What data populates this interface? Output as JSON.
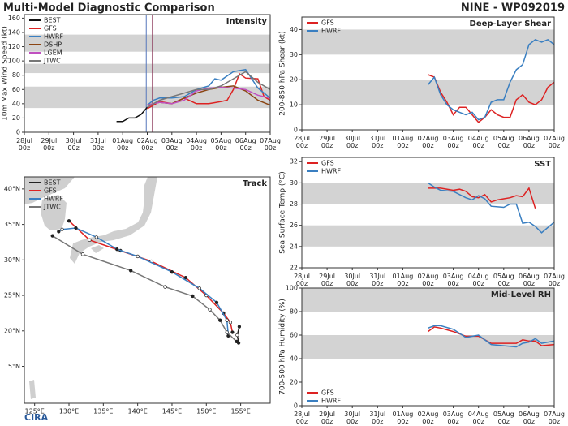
{
  "title": "Multi-Model Diagnostic Comparison",
  "storm": "NINE - WP092019",
  "logo": "CIRA",
  "chart_data": [
    {
      "type": "line",
      "title": "Intensity",
      "ylabel": "10m Max Wind Speed (kt)",
      "legend": "upper left",
      "xlim": [
        0,
        240
      ],
      "xticks": [
        {
          "value": 0,
          "label": "28Jul 00z"
        },
        {
          "value": 24,
          "label": "29Jul 00z"
        },
        {
          "value": 48,
          "label": "30Jul 00z"
        },
        {
          "value": 72,
          "label": "31Jul 00z"
        },
        {
          "value": 96,
          "label": "01Aug 00z"
        },
        {
          "value": 120,
          "label": "02Aug 00z"
        },
        {
          "value": 144,
          "label": "03Aug 00z"
        },
        {
          "value": 168,
          "label": "04Aug 00z"
        },
        {
          "value": 192,
          "label": "05Aug 00z"
        },
        {
          "value": 216,
          "label": "06Aug 00z"
        },
        {
          "value": 240,
          "label": "07Aug 00z"
        }
      ],
      "ylim": [
        0,
        165
      ],
      "yticks": [
        0,
        20,
        40,
        60,
        80,
        100,
        120,
        140,
        160
      ],
      "bands": [
        [
          34,
          64
        ],
        [
          83,
          96
        ],
        [
          113,
          137
        ]
      ],
      "markers": [
        {
          "x": 119,
          "color": "#5577bb"
        },
        {
          "x": 125,
          "color": "#883355"
        }
      ],
      "series": [
        {
          "name": "BEST",
          "color": "#111111",
          "x": [
            90,
            96,
            102,
            108,
            114,
            120
          ],
          "values": [
            15,
            15,
            20,
            20,
            25,
            35
          ]
        },
        {
          "name": "GFS",
          "color": "#dd2222",
          "x": [
            120,
            132,
            144,
            156,
            168,
            180,
            192,
            198,
            204,
            210,
            216,
            228,
            234,
            240
          ],
          "values": [
            33,
            43,
            40,
            48,
            40,
            40,
            43,
            45,
            60,
            82,
            76,
            75,
            50,
            45
          ]
        },
        {
          "name": "HWRF",
          "color": "#3a7fc1",
          "x": [
            120,
            126,
            132,
            144,
            156,
            168,
            180,
            186,
            192,
            204,
            216,
            228,
            240
          ],
          "values": [
            38,
            45,
            48,
            48,
            50,
            60,
            65,
            75,
            73,
            85,
            88,
            62,
            48
          ]
        },
        {
          "name": "DSHP",
          "color": "#8b4513",
          "x": [
            120,
            132,
            144,
            156,
            168,
            180,
            192,
            204,
            216,
            228,
            240
          ],
          "values": [
            38,
            42,
            40,
            48,
            55,
            60,
            63,
            65,
            58,
            45,
            38
          ]
        },
        {
          "name": "LGEM",
          "color": "#c050c0",
          "x": [
            120,
            132,
            144,
            156,
            168,
            180,
            192,
            204,
            216,
            228,
            240
          ],
          "values": [
            38,
            42,
            40,
            45,
            58,
            62,
            63,
            62,
            60,
            52,
            48
          ]
        },
        {
          "name": "JTWC",
          "color": "#777777",
          "x": [
            120,
            132,
            144,
            156,
            168,
            180,
            192,
            204,
            216,
            228,
            240
          ],
          "values": [
            35,
            45,
            50,
            55,
            60,
            60,
            65,
            75,
            85,
            70,
            60
          ]
        }
      ]
    },
    {
      "type": "line",
      "title": "Deep-Layer Shear",
      "ylabel": "200-850 hPa Shear (kt)",
      "legend": "upper left",
      "xlim": [
        0,
        240
      ],
      "xticks": [
        {
          "value": 0,
          "label": "28Jul 00z"
        },
        {
          "value": 24,
          "label": "29Jul 00z"
        },
        {
          "value": 48,
          "label": "30Jul 00z"
        },
        {
          "value": 72,
          "label": "31Jul 00z"
        },
        {
          "value": 96,
          "label": "01Aug 00z"
        },
        {
          "value": 120,
          "label": "02Aug 00z"
        },
        {
          "value": 144,
          "label": "03Aug 00z"
        },
        {
          "value": 168,
          "label": "04Aug 00z"
        },
        {
          "value": 192,
          "label": "05Aug 00z"
        },
        {
          "value": 216,
          "label": "06Aug 00z"
        },
        {
          "value": 240,
          "label": "07Aug 00z"
        }
      ],
      "ylim": [
        0,
        45
      ],
      "yticks": [
        0,
        10,
        20,
        30,
        40
      ],
      "bands": [
        [
          10,
          20
        ],
        [
          30,
          40
        ]
      ],
      "markers": [
        {
          "x": 120,
          "color": "#5577bb"
        }
      ],
      "series": [
        {
          "name": "GFS",
          "color": "#dd2222",
          "x": [
            120,
            126,
            132,
            138,
            144,
            150,
            156,
            162,
            168,
            174,
            180,
            186,
            192,
            198,
            204,
            210,
            216,
            222,
            228,
            234,
            240
          ],
          "values": [
            22,
            21,
            15,
            11,
            6,
            9,
            9,
            6,
            3,
            5,
            8,
            6,
            5,
            5,
            12,
            14,
            11,
            10,
            12,
            17,
            19
          ]
        },
        {
          "name": "HWRF",
          "color": "#3a7fc1",
          "x": [
            120,
            126,
            132,
            138,
            144,
            150,
            156,
            162,
            168,
            174,
            180,
            186,
            192,
            198,
            204,
            210,
            216,
            222,
            228,
            234,
            240
          ],
          "values": [
            18,
            21,
            14,
            10,
            8,
            7,
            6,
            7,
            4,
            5,
            11,
            12,
            12,
            19,
            24,
            26,
            34,
            36,
            35,
            36,
            34
          ]
        }
      ]
    },
    {
      "type": "line",
      "title": "SST",
      "ylabel": "Sea Surface Temp (°C)",
      "legend": "upper left",
      "xlim": [
        0,
        240
      ],
      "xticks": [
        {
          "value": 0,
          "label": "28Jul 00z"
        },
        {
          "value": 24,
          "label": "29Jul 00z"
        },
        {
          "value": 48,
          "label": "30Jul 00z"
        },
        {
          "value": 72,
          "label": "31Jul 00z"
        },
        {
          "value": 96,
          "label": "01Aug 00z"
        },
        {
          "value": 120,
          "label": "02Aug 00z"
        },
        {
          "value": 144,
          "label": "03Aug 00z"
        },
        {
          "value": 168,
          "label": "04Aug 00z"
        },
        {
          "value": 192,
          "label": "05Aug 00z"
        },
        {
          "value": 216,
          "label": "06Aug 00z"
        },
        {
          "value": 240,
          "label": "07Aug 00z"
        }
      ],
      "ylim": [
        22,
        32.4
      ],
      "yticks": [
        22,
        24,
        26,
        28,
        30,
        32
      ],
      "bands": [
        [
          24,
          26
        ],
        [
          28,
          30
        ]
      ],
      "markers": [
        {
          "x": 120,
          "color": "#5577bb"
        }
      ],
      "series": [
        {
          "name": "GFS",
          "color": "#dd2222",
          "x": [
            120,
            132,
            144,
            150,
            156,
            162,
            168,
            174,
            180,
            186,
            192,
            198,
            204,
            210,
            216,
            222
          ],
          "values": [
            29.5,
            29.5,
            29.3,
            29.4,
            29.2,
            28.7,
            28.6,
            28.9,
            28.2,
            28.4,
            28.5,
            28.6,
            28.8,
            28.7,
            29.5,
            27.6
          ]
        },
        {
          "name": "HWRF",
          "color": "#3a7fc1",
          "x": [
            120,
            126,
            132,
            144,
            156,
            162,
            168,
            174,
            180,
            192,
            198,
            204,
            210,
            216,
            222,
            228,
            234,
            240
          ],
          "values": [
            30,
            29.6,
            29.3,
            29.2,
            28.6,
            28.4,
            28.8,
            28.5,
            27.8,
            27.7,
            28,
            28,
            26.2,
            26.3,
            25.9,
            25.3,
            25.8,
            26.3
          ]
        }
      ]
    },
    {
      "type": "line",
      "title": "Mid-Level RH",
      "ylabel": "700-500 hPa Humidity (%)",
      "legend": "lower left",
      "xlim": [
        0,
        240
      ],
      "xticks": [
        {
          "value": 0,
          "label": "28Jul 00z"
        },
        {
          "value": 24,
          "label": "29Jul 00z"
        },
        {
          "value": 48,
          "label": "30Jul 00z"
        },
        {
          "value": 72,
          "label": "31Jul 00z"
        },
        {
          "value": 96,
          "label": "01Aug 00z"
        },
        {
          "value": 120,
          "label": "02Aug 00z"
        },
        {
          "value": 144,
          "label": "03Aug 00z"
        },
        {
          "value": 168,
          "label": "04Aug 00z"
        },
        {
          "value": 192,
          "label": "05Aug 00z"
        },
        {
          "value": 216,
          "label": "06Aug 00z"
        },
        {
          "value": 240,
          "label": "07Aug 00z"
        }
      ],
      "ylim": [
        0,
        100
      ],
      "yticks": [
        0,
        20,
        40,
        60,
        80,
        100
      ],
      "bands": [
        [
          40,
          60
        ],
        [
          80,
          100
        ]
      ],
      "markers": [
        {
          "x": 120,
          "color": "#5577bb"
        }
      ],
      "series": [
        {
          "name": "GFS",
          "color": "#dd2222",
          "x": [
            120,
            126,
            132,
            144,
            156,
            168,
            180,
            192,
            204,
            210,
            216,
            222,
            228,
            240
          ],
          "values": [
            63,
            67,
            66,
            63,
            59,
            59,
            53,
            53,
            53,
            56,
            55,
            55,
            51,
            52
          ]
        },
        {
          "name": "HWRF",
          "color": "#3a7fc1",
          "x": [
            120,
            126,
            132,
            144,
            156,
            168,
            180,
            192,
            204,
            210,
            216,
            222,
            228,
            240
          ],
          "values": [
            66,
            68,
            68,
            65,
            58,
            60,
            52,
            51,
            50,
            53,
            54,
            57,
            53,
            55
          ]
        }
      ]
    },
    {
      "type": "track",
      "title": "Track",
      "legend": "upper left",
      "xlim": [
        123.5,
        159.3
      ],
      "xticks": [
        {
          "value": 125,
          "label": "125°E"
        },
        {
          "value": 130,
          "label": "130°E"
        },
        {
          "value": 135,
          "label": "135°E"
        },
        {
          "value": 140,
          "label": "140°E"
        },
        {
          "value": 145,
          "label": "145°E"
        },
        {
          "value": 150,
          "label": "150°E"
        },
        {
          "value": 155,
          "label": "155°E"
        }
      ],
      "ylim": [
        9.8,
        41.7
      ],
      "yticks": [
        {
          "value": 15,
          "label": "15°N"
        },
        {
          "value": 20,
          "label": "20°N"
        },
        {
          "value": 25,
          "label": "25°N"
        },
        {
          "value": 30,
          "label": "30°N"
        },
        {
          "value": 35,
          "label": "35°N"
        },
        {
          "value": 40,
          "label": "40°N"
        }
      ],
      "series": [
        {
          "name": "BEST",
          "color": "#222222",
          "x": [
            154.7,
            154.5,
            154.8
          ],
          "values": [
            18.3,
            19.4,
            20.6
          ]
        },
        {
          "name": "GFS",
          "color": "#dd2222",
          "x": [
            153.8,
            153.5,
            152.5,
            150,
            147,
            142,
            137.5,
            133,
            130
          ],
          "values": [
            19.8,
            21.2,
            22.5,
            25,
            27.5,
            29.8,
            31.3,
            32.8,
            35.5
          ]
        },
        {
          "name": "HWRF",
          "color": "#3a7fc1",
          "x": [
            153.2,
            153,
            151.5,
            149,
            145,
            140,
            137,
            134,
            131,
            129,
            128.5
          ],
          "values": [
            19.3,
            21.5,
            24,
            26,
            28.3,
            30.5,
            31.5,
            33.2,
            34.5,
            34.3,
            34
          ]
        },
        {
          "name": "JTWC",
          "color": "#777777",
          "x": [
            154.4,
            153,
            152,
            150.5,
            148,
            144,
            139,
            132,
            127.6
          ],
          "values": [
            18.5,
            19.8,
            21.5,
            23,
            24.9,
            26.2,
            28.5,
            30.8,
            33.4
          ]
        }
      ]
    }
  ]
}
